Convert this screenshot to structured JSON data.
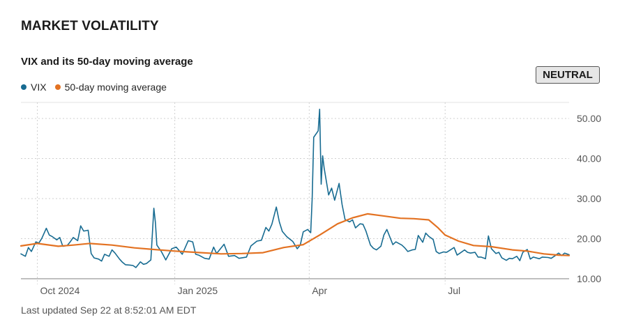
{
  "page_title": "MARKET VOLATILITY",
  "status_badge": "NEUTRAL",
  "footer": "Last updated Sep 22 at 8:52:01 AM EDT",
  "colors": {
    "vix": "#176b91",
    "ma": "#e37222",
    "grid": "#cfcfcf",
    "axis": "#999999"
  },
  "chart_data": {
    "type": "line",
    "title": "VIX and its 50-day moving average",
    "x_start": "2024-09-20",
    "x_end": "2025-09-22",
    "x_ticks": [
      {
        "label": "Oct 2024",
        "date": "2024-10-01"
      },
      {
        "label": "Jan 2025",
        "date": "2025-01-01"
      },
      {
        "label": "Apr",
        "date": "2025-04-01"
      },
      {
        "label": "Jul",
        "date": "2025-07-01"
      }
    ],
    "y_ticks": [
      {
        "label": "10.00",
        "value": 10
      },
      {
        "label": "20.00",
        "value": 20
      },
      {
        "label": "30.00",
        "value": 30
      },
      {
        "label": "40.00",
        "value": 40
      },
      {
        "label": "50.00",
        "value": 50
      }
    ],
    "ylim": [
      10,
      54
    ],
    "series": [
      {
        "name": "VIX",
        "x": [
          "2024-09-20",
          "2024-09-23",
          "2024-09-25",
          "2024-09-27",
          "2024-09-30",
          "2024-10-02",
          "2024-10-04",
          "2024-10-07",
          "2024-10-09",
          "2024-10-11",
          "2024-10-14",
          "2024-10-16",
          "2024-10-18",
          "2024-10-21",
          "2024-10-23",
          "2024-10-25",
          "2024-10-28",
          "2024-10-30",
          "2024-11-01",
          "2024-11-04",
          "2024-11-06",
          "2024-11-08",
          "2024-11-11",
          "2024-11-13",
          "2024-11-15",
          "2024-11-18",
          "2024-11-20",
          "2024-11-22",
          "2024-11-25",
          "2024-11-27",
          "2024-11-29",
          "2024-12-02",
          "2024-12-04",
          "2024-12-06",
          "2024-12-09",
          "2024-12-11",
          "2024-12-13",
          "2024-12-16",
          "2024-12-18",
          "2024-12-19",
          "2024-12-20",
          "2024-12-23",
          "2024-12-26",
          "2024-12-30",
          "2025-01-02",
          "2025-01-06",
          "2025-01-08",
          "2025-01-10",
          "2025-01-13",
          "2025-01-15",
          "2025-01-17",
          "2025-01-21",
          "2025-01-24",
          "2025-01-27",
          "2025-01-29",
          "2025-02-03",
          "2025-02-06",
          "2025-02-10",
          "2025-02-13",
          "2025-02-18",
          "2025-02-21",
          "2025-02-25",
          "2025-02-28",
          "2025-03-03",
          "2025-03-05",
          "2025-03-07",
          "2025-03-10",
          "2025-03-12",
          "2025-03-14",
          "2025-03-17",
          "2025-03-19",
          "2025-03-21",
          "2025-03-24",
          "2025-03-26",
          "2025-03-28",
          "2025-03-31",
          "2025-04-02",
          "2025-04-03",
          "2025-04-04",
          "2025-04-07",
          "2025-04-08",
          "2025-04-09",
          "2025-04-10",
          "2025-04-11",
          "2025-04-14",
          "2025-04-16",
          "2025-04-18",
          "2025-04-21",
          "2025-04-23",
          "2025-04-25",
          "2025-04-28",
          "2025-04-30",
          "2025-05-02",
          "2025-05-05",
          "2025-05-07",
          "2025-05-09",
          "2025-05-12",
          "2025-05-14",
          "2025-05-16",
          "2025-05-19",
          "2025-05-21",
          "2025-05-23",
          "2025-05-27",
          "2025-05-29",
          "2025-06-02",
          "2025-06-04",
          "2025-06-06",
          "2025-06-09",
          "2025-06-11",
          "2025-06-13",
          "2025-06-16",
          "2025-06-18",
          "2025-06-20",
          "2025-06-23",
          "2025-06-25",
          "2025-06-27",
          "2025-06-30",
          "2025-07-02",
          "2025-07-07",
          "2025-07-09",
          "2025-07-11",
          "2025-07-14",
          "2025-07-16",
          "2025-07-18",
          "2025-07-21",
          "2025-07-23",
          "2025-07-25",
          "2025-07-28",
          "2025-07-30",
          "2025-08-01",
          "2025-08-04",
          "2025-08-06",
          "2025-08-08",
          "2025-08-11",
          "2025-08-13",
          "2025-08-15",
          "2025-08-18",
          "2025-08-20",
          "2025-08-22",
          "2025-08-25",
          "2025-08-27",
          "2025-08-29",
          "2025-09-02",
          "2025-09-04",
          "2025-09-08",
          "2025-09-10",
          "2025-09-12",
          "2025-09-15",
          "2025-09-17",
          "2025-09-19",
          "2025-09-22"
        ],
        "values": [
          16.2,
          15.6,
          17.8,
          16.8,
          19.2,
          18.9,
          20.1,
          22.6,
          20.9,
          20.5,
          19.7,
          20.3,
          18.1,
          18.3,
          19.2,
          20.3,
          19.5,
          23.2,
          21.9,
          22.1,
          16.3,
          15.2,
          14.9,
          14.4,
          16.1,
          15.6,
          17.2,
          16.4,
          14.9,
          14.1,
          13.5,
          13.4,
          13.3,
          12.8,
          14.2,
          13.6,
          13.8,
          14.7,
          27.6,
          24.1,
          18.4,
          16.8,
          14.7,
          17.5,
          17.9,
          16.1,
          17.8,
          19.5,
          19.2,
          16.1,
          15.9,
          15.1,
          14.9,
          17.9,
          16.3,
          18.6,
          15.6,
          15.8,
          15.1,
          15.4,
          18.2,
          19.4,
          19.6,
          22.8,
          21.9,
          23.6,
          27.9,
          24.2,
          21.8,
          20.5,
          19.9,
          19.3,
          17.5,
          18.4,
          21.7,
          22.3,
          21.5,
          30.0,
          45.3,
          46.9,
          52.3,
          33.6,
          40.7,
          37.6,
          30.9,
          32.6,
          29.6,
          33.8,
          28.5,
          24.8,
          24.2,
          24.7,
          22.7,
          23.7,
          23.6,
          21.9,
          18.4,
          17.6,
          17.2,
          18.1,
          20.9,
          22.3,
          18.5,
          19.2,
          18.4,
          17.7,
          16.8,
          17.2,
          17.3,
          20.8,
          19.1,
          21.4,
          20.6,
          19.8,
          16.8,
          16.3,
          16.7,
          16.6,
          17.8,
          15.9,
          16.4,
          17.2,
          16.6,
          16.4,
          16.6,
          15.4,
          15.4,
          15.0,
          20.7,
          17.5,
          16.3,
          16.6,
          15.2,
          14.6,
          15.1,
          15.0,
          15.6,
          14.5,
          16.6,
          17.3,
          14.9,
          15.4,
          15.0,
          15.4,
          15.3,
          15.1,
          15.6,
          16.4,
          15.8,
          16.4,
          16.0
        ]
      },
      {
        "name": "50-day moving average",
        "x": [
          "2024-09-20",
          "2024-10-01",
          "2024-10-15",
          "2024-10-25",
          "2024-11-05",
          "2024-11-20",
          "2024-12-05",
          "2024-12-18",
          "2025-01-01",
          "2025-01-15",
          "2025-02-01",
          "2025-02-15",
          "2025-03-01",
          "2025-03-15",
          "2025-03-28",
          "2025-04-08",
          "2025-04-20",
          "2025-04-30",
          "2025-05-10",
          "2025-05-20",
          "2025-06-01",
          "2025-06-10",
          "2025-06-20",
          "2025-06-26",
          "2025-07-01",
          "2025-07-10",
          "2025-07-20",
          "2025-08-01",
          "2025-08-15",
          "2025-08-25",
          "2025-09-05",
          "2025-09-15",
          "2025-09-22"
        ],
        "values": [
          18.2,
          18.8,
          18.1,
          18.4,
          18.8,
          18.4,
          17.7,
          17.3,
          16.9,
          16.6,
          16.2,
          16.3,
          16.5,
          17.8,
          18.5,
          20.9,
          23.7,
          25.2,
          26.2,
          25.7,
          25.1,
          25.0,
          24.7,
          22.8,
          20.9,
          19.4,
          18.3,
          18.0,
          17.2,
          16.9,
          16.2,
          15.9,
          15.8
        ]
      }
    ]
  }
}
